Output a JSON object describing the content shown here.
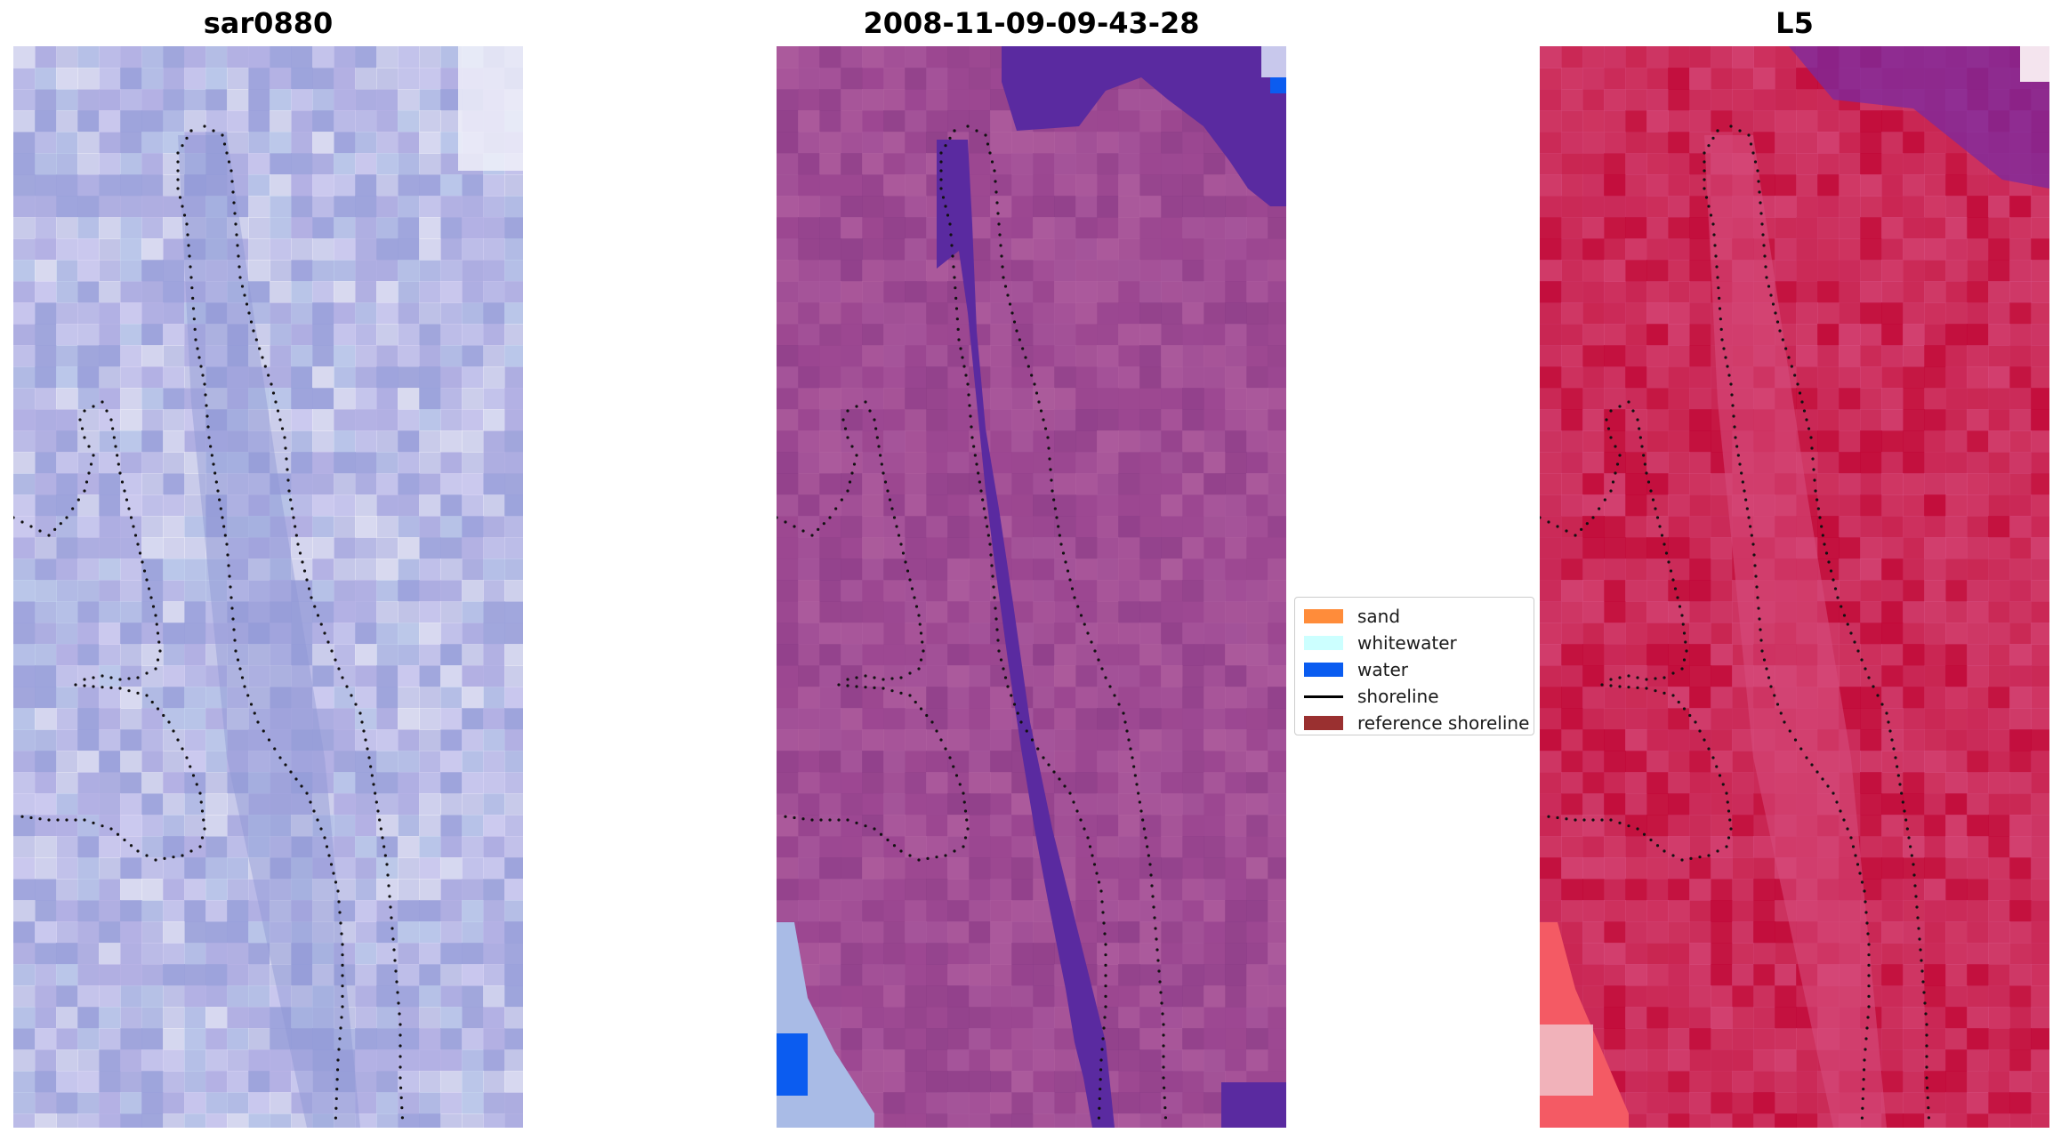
{
  "panels": [
    {
      "title": "sar0880",
      "base_color": "#a6aade",
      "accent_colors": [
        "#b9b4e6",
        "#c3d2ee",
        "#9aa1db",
        "#d8d4f4",
        "#eaeaf6"
      ]
    },
    {
      "title": "2008-11-09-09-43-28",
      "base_color": "#9f4a93",
      "water_color": "#5a2aa0",
      "corner_colors": [
        "#a9bbe6",
        "#0b5cf0",
        "#c8c8ec"
      ]
    },
    {
      "title": "L5",
      "base_color": "#c8204a",
      "accent_colors": [
        "#d54b7c",
        "#c10838",
        "#7a2aa0",
        "#f45a64",
        "#f0c8d0"
      ]
    }
  ],
  "legend": {
    "items": [
      {
        "label": "sand",
        "color": "#ff8c3a",
        "kind": "patch"
      },
      {
        "label": "whitewater",
        "color": "#ccffff",
        "kind": "patch"
      },
      {
        "label": "water",
        "color": "#0a5cf0",
        "kind": "patch"
      },
      {
        "label": "shoreline",
        "color": "#000000",
        "kind": "line"
      },
      {
        "label": "reference shoreline",
        "color": "#9a3030",
        "kind": "patch"
      }
    ]
  }
}
